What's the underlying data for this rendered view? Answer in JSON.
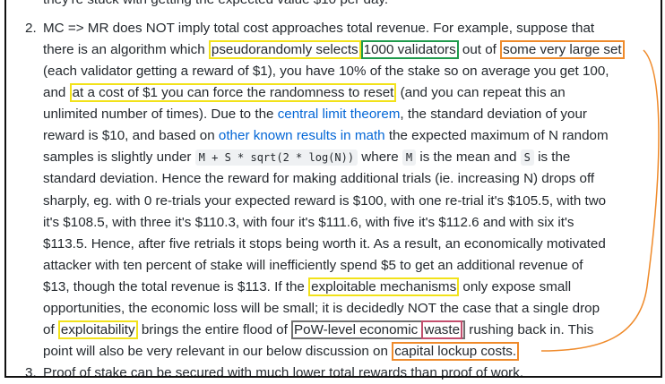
{
  "top_line": "they're stuck with getting the expected value $10 per day.",
  "item_2": {
    "number": "2.",
    "lines": [
      [
        {
          "text": "MC => MR does NOT imply total cost approaches total revenue. For example, suppose that"
        }
      ],
      [
        {
          "text": "there is an algorithm which "
        },
        {
          "text": "pseudorandomly selects",
          "box": "#f2e21a"
        },
        {
          "text": "1000 validators",
          "box": "#1f9a4c"
        },
        {
          "text": " out of "
        },
        {
          "text": "some very large set",
          "box": "#ef8a2a"
        }
      ],
      [
        {
          "text": "(each validator getting a reward of $1), you have 10% of the stake so on average you get 100,"
        }
      ],
      [
        {
          "text": "and "
        },
        {
          "text": "at a cost of $1 you can force the randomness to reset",
          "box": "#f2e21a"
        },
        {
          "text": " (and you can repeat this an"
        }
      ],
      [
        {
          "text": "unlimited number of times). Due to the "
        },
        {
          "text": "central limit theorem",
          "style": "link"
        },
        {
          "text": ", the standard deviation of your"
        }
      ],
      [
        {
          "text": "reward is $10, and based on "
        },
        {
          "text": "other known results in math",
          "style": "link"
        },
        {
          "text": " the expected maximum of N random"
        }
      ],
      [
        {
          "text": "samples is slightly under "
        },
        {
          "text": "M + S * sqrt(2 * log(N))",
          "style": "code"
        },
        {
          "text": " where "
        },
        {
          "text": "M",
          "style": "code"
        },
        {
          "text": " is the mean and "
        },
        {
          "text": "S",
          "style": "code"
        },
        {
          "text": " is the"
        }
      ],
      [
        {
          "text": "standard deviation. Hence the reward for making additional trials (ie. increasing N) drops off"
        }
      ],
      [
        {
          "text": "sharply, eg. with 0 re-trials your expected reward is $100, with one re-trial it's $105.5, with two"
        }
      ],
      [
        {
          "text": "it's $108.5, with three it's $110.3, with four it's $111.6, with five it's $112.6 and with six it's"
        }
      ],
      [
        {
          "text": "$113.5. Hence, after five retrials it stops being worth it. As a result, an economically motivated"
        }
      ],
      [
        {
          "text": "attacker with ten percent of stake will inefficiently spend $5 to get an additional revenue of"
        }
      ],
      [
        {
          "text": "$13, though the total revenue is $113. If the "
        },
        {
          "text": "exploitable mechanisms",
          "box": "#f2e21a"
        },
        {
          "text": " only expose small"
        }
      ],
      [
        {
          "text": "opportunities, the economic loss will be small; it is decidedly NOT the case that a single drop"
        }
      ],
      [
        {
          "text": "of "
        },
        {
          "text": "exploitability",
          "box": "#f2e21a"
        },
        {
          "text": " brings the entire flood of "
        },
        {
          "box": "#707070",
          "parts": [
            {
              "text": "PoW-level economic "
            },
            {
              "text": "waste",
              "box": "#c24f6e"
            }
          ]
        },
        {
          "text": " rushing back in. This"
        }
      ],
      [
        {
          "text": "point will also be very relevant in our below discussion on "
        },
        {
          "text": "capital lockup costs.",
          "box": "#ef8a2a"
        }
      ]
    ]
  },
  "item_3": {
    "number": "3.",
    "text": "Proof of stake can be secured with much lower total rewards than proof of work."
  }
}
